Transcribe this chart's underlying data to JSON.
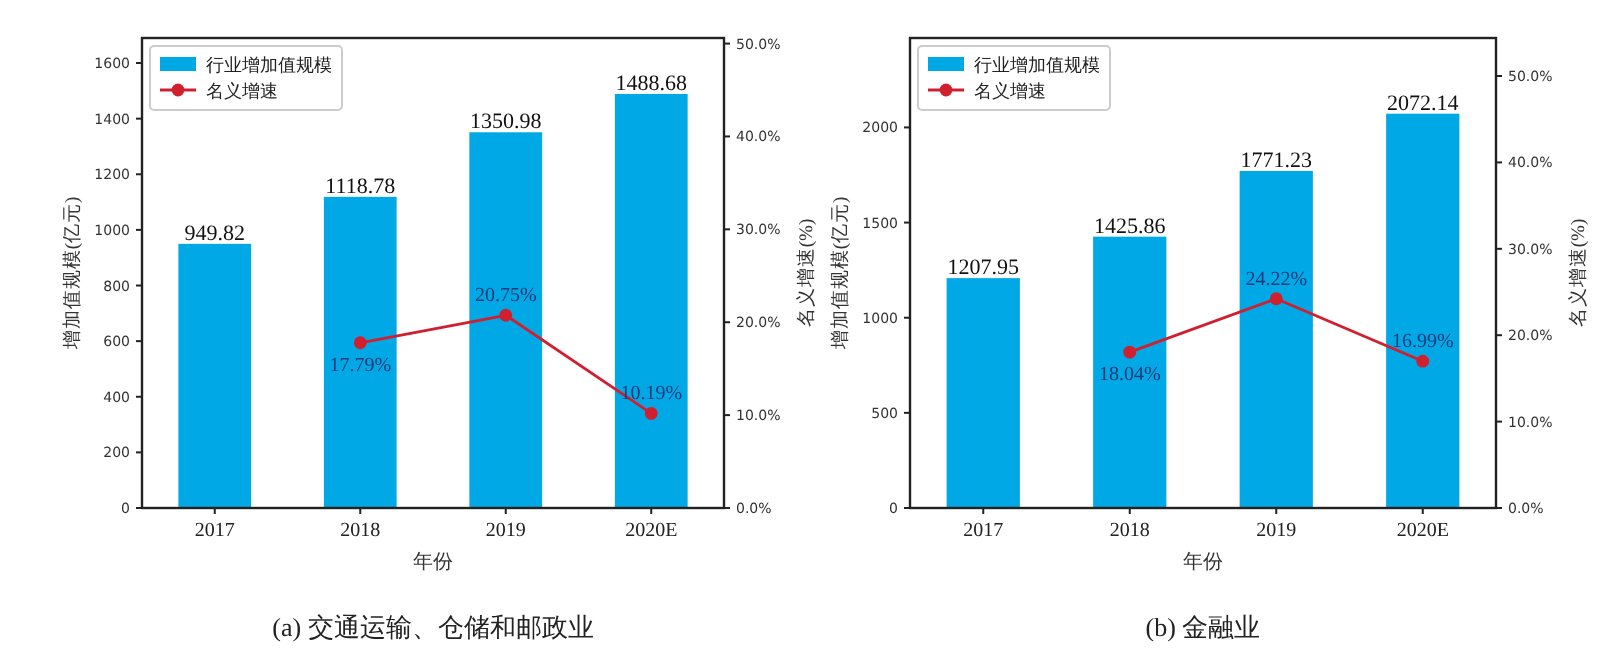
{
  "chart_data": [
    {
      "type": "bar",
      "categories": [
        "2017",
        "2018",
        "2019",
        "2020E"
      ],
      "xlabel": "年份",
      "ylabel": "增加值规模(亿元)",
      "y2label": "名义增速(%)",
      "annotations": [
        "(a) 交通运输、仓储和邮政业"
      ],
      "legend": "top left",
      "grid": false,
      "ylim": [
        0,
        1690
      ],
      "yticks": [
        0,
        200,
        400,
        600,
        800,
        1000,
        1200,
        1400,
        1600
      ],
      "y2lim": [
        0,
        50.6
      ],
      "y2ticks": [
        {
          "value": 0,
          "label": "0.0%"
        },
        {
          "value": 10,
          "label": "10.0%"
        },
        {
          "value": 20,
          "label": "20.0%"
        },
        {
          "value": 30,
          "label": "30.0%"
        },
        {
          "value": 40,
          "label": "40.0%"
        },
        {
          "value": 50,
          "label": "50.0%"
        }
      ],
      "series": [
        {
          "name": "行业增加值规模",
          "color": "#00a8e6",
          "values": [
            949.82,
            1118.78,
            1350.98,
            1488.68
          ],
          "value_labels": [
            "949.82",
            "1118.78",
            "1350.98",
            "1488.68"
          ]
        },
        {
          "name": "名义增速",
          "type": "line",
          "axis": "y2",
          "color": "#d02030",
          "marker": "circle",
          "values": [
            null,
            17.79,
            20.75,
            10.19
          ],
          "value_labels": [
            null,
            "17.79%",
            "20.75%",
            "10.19%"
          ]
        }
      ]
    },
    {
      "type": "bar",
      "categories": [
        "2017",
        "2018",
        "2019",
        "2020E"
      ],
      "xlabel": "年份",
      "ylabel": "增加值规模(亿元)",
      "y2label": "名义增速(%)",
      "annotations": [
        "(b) 金融业"
      ],
      "legend": "top left",
      "grid": false,
      "ylim": [
        0,
        2470
      ],
      "yticks": [
        0,
        500,
        1000,
        1500,
        2000
      ],
      "y2lim": [
        0,
        54.4
      ],
      "y2ticks": [
        {
          "value": 0,
          "label": "0.0%"
        },
        {
          "value": 10,
          "label": "10.0%"
        },
        {
          "value": 20,
          "label": "20.0%"
        },
        {
          "value": 30,
          "label": "30.0%"
        },
        {
          "value": 40,
          "label": "40.0%"
        },
        {
          "value": 50,
          "label": "50.0%"
        }
      ],
      "series": [
        {
          "name": "行业增加值规模",
          "color": "#00a8e6",
          "values": [
            1207.95,
            1425.86,
            1771.23,
            2072.14
          ],
          "value_labels": [
            "1207.95",
            "1425.86",
            "1771.23",
            "2072.14"
          ]
        },
        {
          "name": "名义增速",
          "type": "line",
          "axis": "y2",
          "color": "#d02030",
          "marker": "circle",
          "values": [
            null,
            18.04,
            24.22,
            16.99
          ],
          "value_labels": [
            null,
            "18.04%",
            "24.22%",
            "16.99%"
          ]
        }
      ]
    }
  ]
}
